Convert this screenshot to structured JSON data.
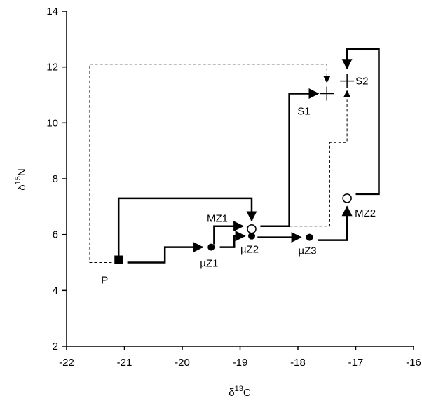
{
  "chart_data": {
    "type": "scatter",
    "title": "",
    "xlabel": {
      "prefix": "δ",
      "sup": "13",
      "suffix": "C"
    },
    "ylabel": {
      "prefix": "δ",
      "sup": "15",
      "suffix": "N"
    },
    "xlim": [
      -22,
      -16
    ],
    "ylim": [
      2,
      14
    ],
    "xticks": [
      -22,
      -21,
      -20,
      -19,
      -18,
      -17,
      -16
    ],
    "yticks": [
      2,
      4,
      6,
      8,
      10,
      12,
      14
    ],
    "grid": false,
    "points": [
      {
        "label": "P",
        "x": -21.1,
        "y": 5.1,
        "marker": "filled-square"
      },
      {
        "label": "µZ1",
        "x": -19.5,
        "y": 5.55,
        "marker": "filled-circle"
      },
      {
        "label": "µZ2",
        "x": -18.8,
        "y": 5.95,
        "marker": "filled-circle"
      },
      {
        "label": "µZ3",
        "x": -17.8,
        "y": 5.9,
        "marker": "filled-circle"
      },
      {
        "label": "MZ1",
        "x": -18.8,
        "y": 6.2,
        "marker": "open-circle"
      },
      {
        "label": "MZ2",
        "x": -17.15,
        "y": 7.3,
        "marker": "open-circle"
      },
      {
        "label": "S1",
        "x": -17.5,
        "y": 11.05,
        "marker": "cross"
      },
      {
        "label": "S2",
        "x": -17.15,
        "y": 11.5,
        "marker": "cross"
      }
    ],
    "solid_arrows": [
      [
        [
          -21.1,
          5.1
        ],
        [
          -21.1,
          7.3
        ],
        [
          -18.8,
          7.3
        ],
        [
          -18.8,
          6.5
        ]
      ],
      [
        [
          -20.95,
          5.0
        ],
        [
          -20.3,
          5.0
        ],
        [
          -20.3,
          5.55
        ],
        [
          -19.65,
          5.55
        ]
      ],
      [
        [
          -19.45,
          5.65
        ],
        [
          -19.45,
          6.3
        ],
        [
          -18.95,
          6.3
        ]
      ],
      [
        [
          -19.35,
          5.55
        ],
        [
          -19.1,
          5.55
        ],
        [
          -19.1,
          5.95
        ],
        [
          -18.92,
          5.95
        ]
      ],
      [
        [
          -18.7,
          5.9
        ],
        [
          -17.95,
          5.9
        ]
      ],
      [
        [
          -17.65,
          5.8
        ],
        [
          -17.15,
          5.8
        ],
        [
          -17.15,
          7.0
        ]
      ],
      [
        [
          -18.65,
          6.3
        ],
        [
          -18.15,
          6.3
        ],
        [
          -18.15,
          11.05
        ],
        [
          -17.65,
          11.05
        ]
      ],
      [
        [
          -17.0,
          7.45
        ],
        [
          -16.6,
          7.45
        ],
        [
          -16.6,
          12.65
        ],
        [
          -17.15,
          12.65
        ],
        [
          -17.15,
          11.95
        ]
      ]
    ],
    "dashed_arrows": [
      [
        [
          -21.22,
          5.0
        ],
        [
          -21.6,
          5.0
        ],
        [
          -21.6,
          12.1
        ],
        [
          -17.5,
          12.1
        ],
        [
          -17.5,
          11.45
        ]
      ],
      [
        [
          -18.65,
          6.3
        ],
        [
          -17.45,
          6.3
        ],
        [
          -17.45,
          9.3
        ],
        [
          -17.15,
          9.3
        ],
        [
          -17.15,
          11.15
        ]
      ]
    ]
  }
}
